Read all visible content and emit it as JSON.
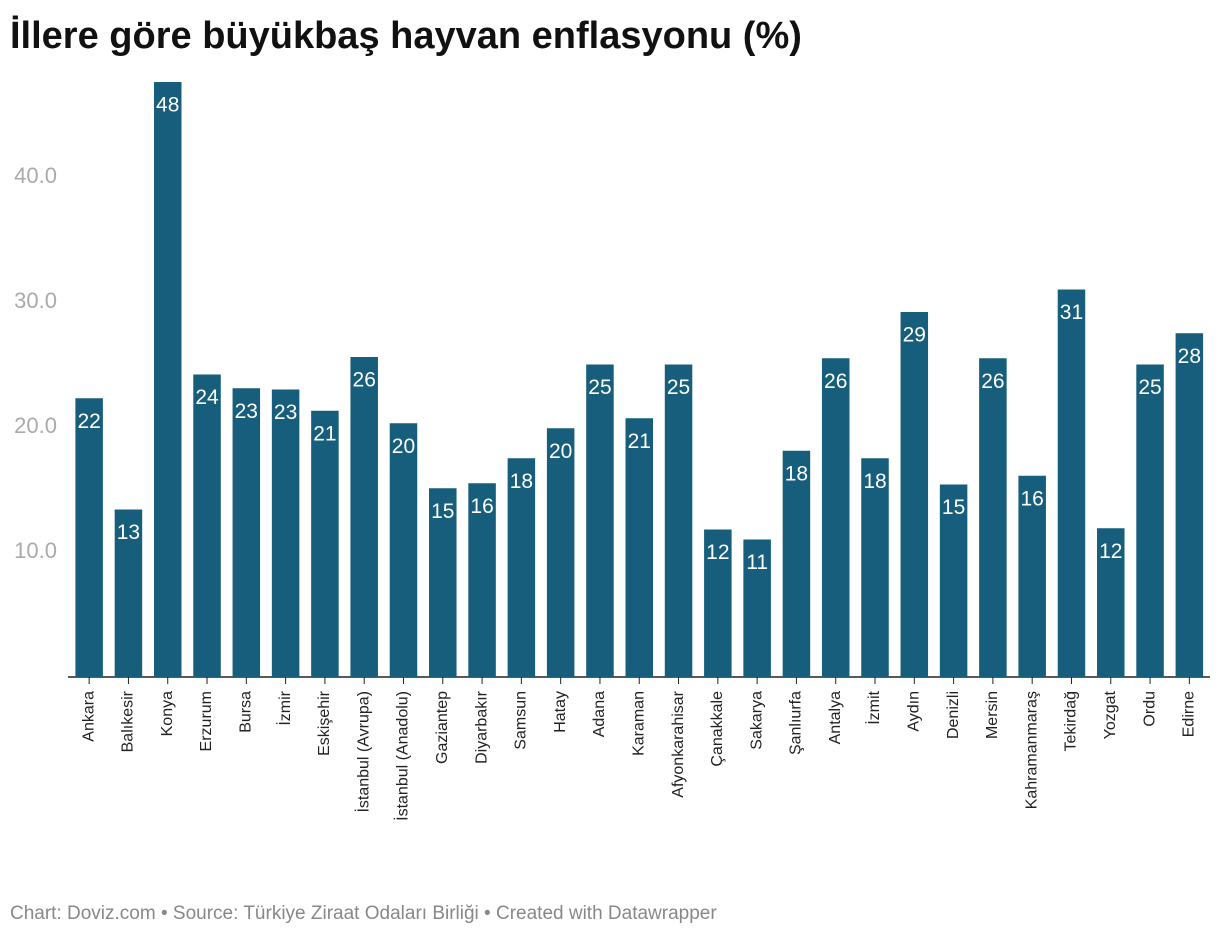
{
  "chart_data": {
    "type": "bar",
    "title": "İllere göre büyükbaş hayvan enflasyonu (%)",
    "source": "Chart: Doviz.com • Source: Türkiye Ziraat Odaları Birliği • Created with Datawrapper",
    "categories": [
      "Ankara",
      "Balıkesir",
      "Konya",
      "Erzurum",
      "Bursa",
      "İzmir",
      "Eskişehir",
      "İstanbul (Avrupa)",
      "İstanbul (Anadolu)",
      "Gaziantep",
      "Diyarbakır",
      "Samsun",
      "Hatay",
      "Adana",
      "Karaman",
      "Afyonkarahisar",
      "Çanakkale",
      "Sakarya",
      "Şanlıurfa",
      "Antalya",
      "İzmit",
      "Aydın",
      "Denizli",
      "Mersin",
      "Kahramanmaraş",
      "Tekirdağ",
      "Yozgat",
      "Ordu",
      "Edirne"
    ],
    "values": [
      22.3,
      13.4,
      47.6,
      24.2,
      23.1,
      23.0,
      21.3,
      25.6,
      20.3,
      15.1,
      15.5,
      17.5,
      19.9,
      25.0,
      20.7,
      25.0,
      11.8,
      11.0,
      18.1,
      25.5,
      17.5,
      29.2,
      15.4,
      25.5,
      16.1,
      31.0,
      11.9,
      25.0,
      27.5
    ],
    "value_labels": [
      "22",
      "13",
      "48",
      "24",
      "23",
      "23",
      "21",
      "26",
      "20",
      "15",
      "16",
      "18",
      "20",
      "25",
      "21",
      "25",
      "12",
      "11",
      "18",
      "26",
      "18",
      "29",
      "15",
      "26",
      "16",
      "31",
      "12",
      "25",
      "28"
    ],
    "color": "#165e7b",
    "ylim": [
      0,
      47.6
    ],
    "yticks": [
      {
        "value": 10,
        "label": "10.0"
      },
      {
        "value": 20,
        "label": "20.0"
      },
      {
        "value": 30,
        "label": "30.0"
      },
      {
        "value": 40,
        "label": "40.0"
      }
    ],
    "grid": false
  }
}
